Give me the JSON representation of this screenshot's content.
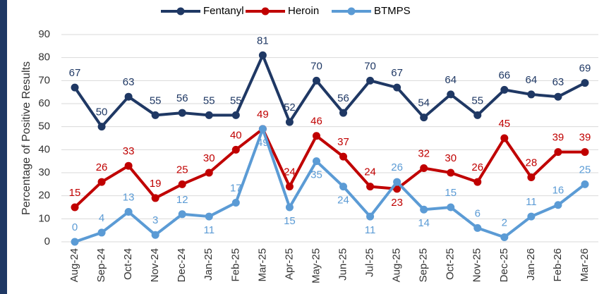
{
  "chart_data": {
    "type": "line",
    "y_label": "Percentage of Positive Results",
    "categories": [
      "Aug-24",
      "Sep-24",
      "Oct-24",
      "Nov-24",
      "Dec-24",
      "Jan-25",
      "Feb-25",
      "Mar-25",
      "Apr-25",
      "May-25",
      "Jun-25",
      "Jul-25",
      "Aug-25",
      "Sep-25",
      "Oct-25",
      "Nov-25",
      "Dec-25",
      "Jan-26",
      "Feb-26",
      "Mar-26"
    ],
    "series": [
      {
        "name": "Fentanyl",
        "color": "#1f3864",
        "values": [
          67,
          50,
          63,
          55,
          56,
          55,
          55,
          81,
          52,
          70,
          56,
          70,
          67,
          54,
          64,
          55,
          66,
          64,
          63,
          69
        ]
      },
      {
        "name": "Heroin",
        "color": "#c00000",
        "values": [
          15,
          26,
          33,
          19,
          25,
          30,
          40,
          49,
          24,
          46,
          37,
          24,
          23,
          32,
          30,
          26,
          45,
          28,
          39,
          39
        ]
      },
      {
        "name": "BTMPS",
        "color": "#5b9bd5",
        "values": [
          0,
          4,
          13,
          3,
          12,
          11,
          17,
          49,
          15,
          35,
          24,
          11,
          26,
          14,
          15,
          6,
          2,
          11,
          16,
          25
        ]
      }
    ],
    "ylim": [
      0,
      90
    ],
    "yticks": [
      0,
      10,
      20,
      30,
      40,
      50,
      60,
      70,
      80,
      90
    ],
    "grid": true,
    "legend": "top"
  }
}
